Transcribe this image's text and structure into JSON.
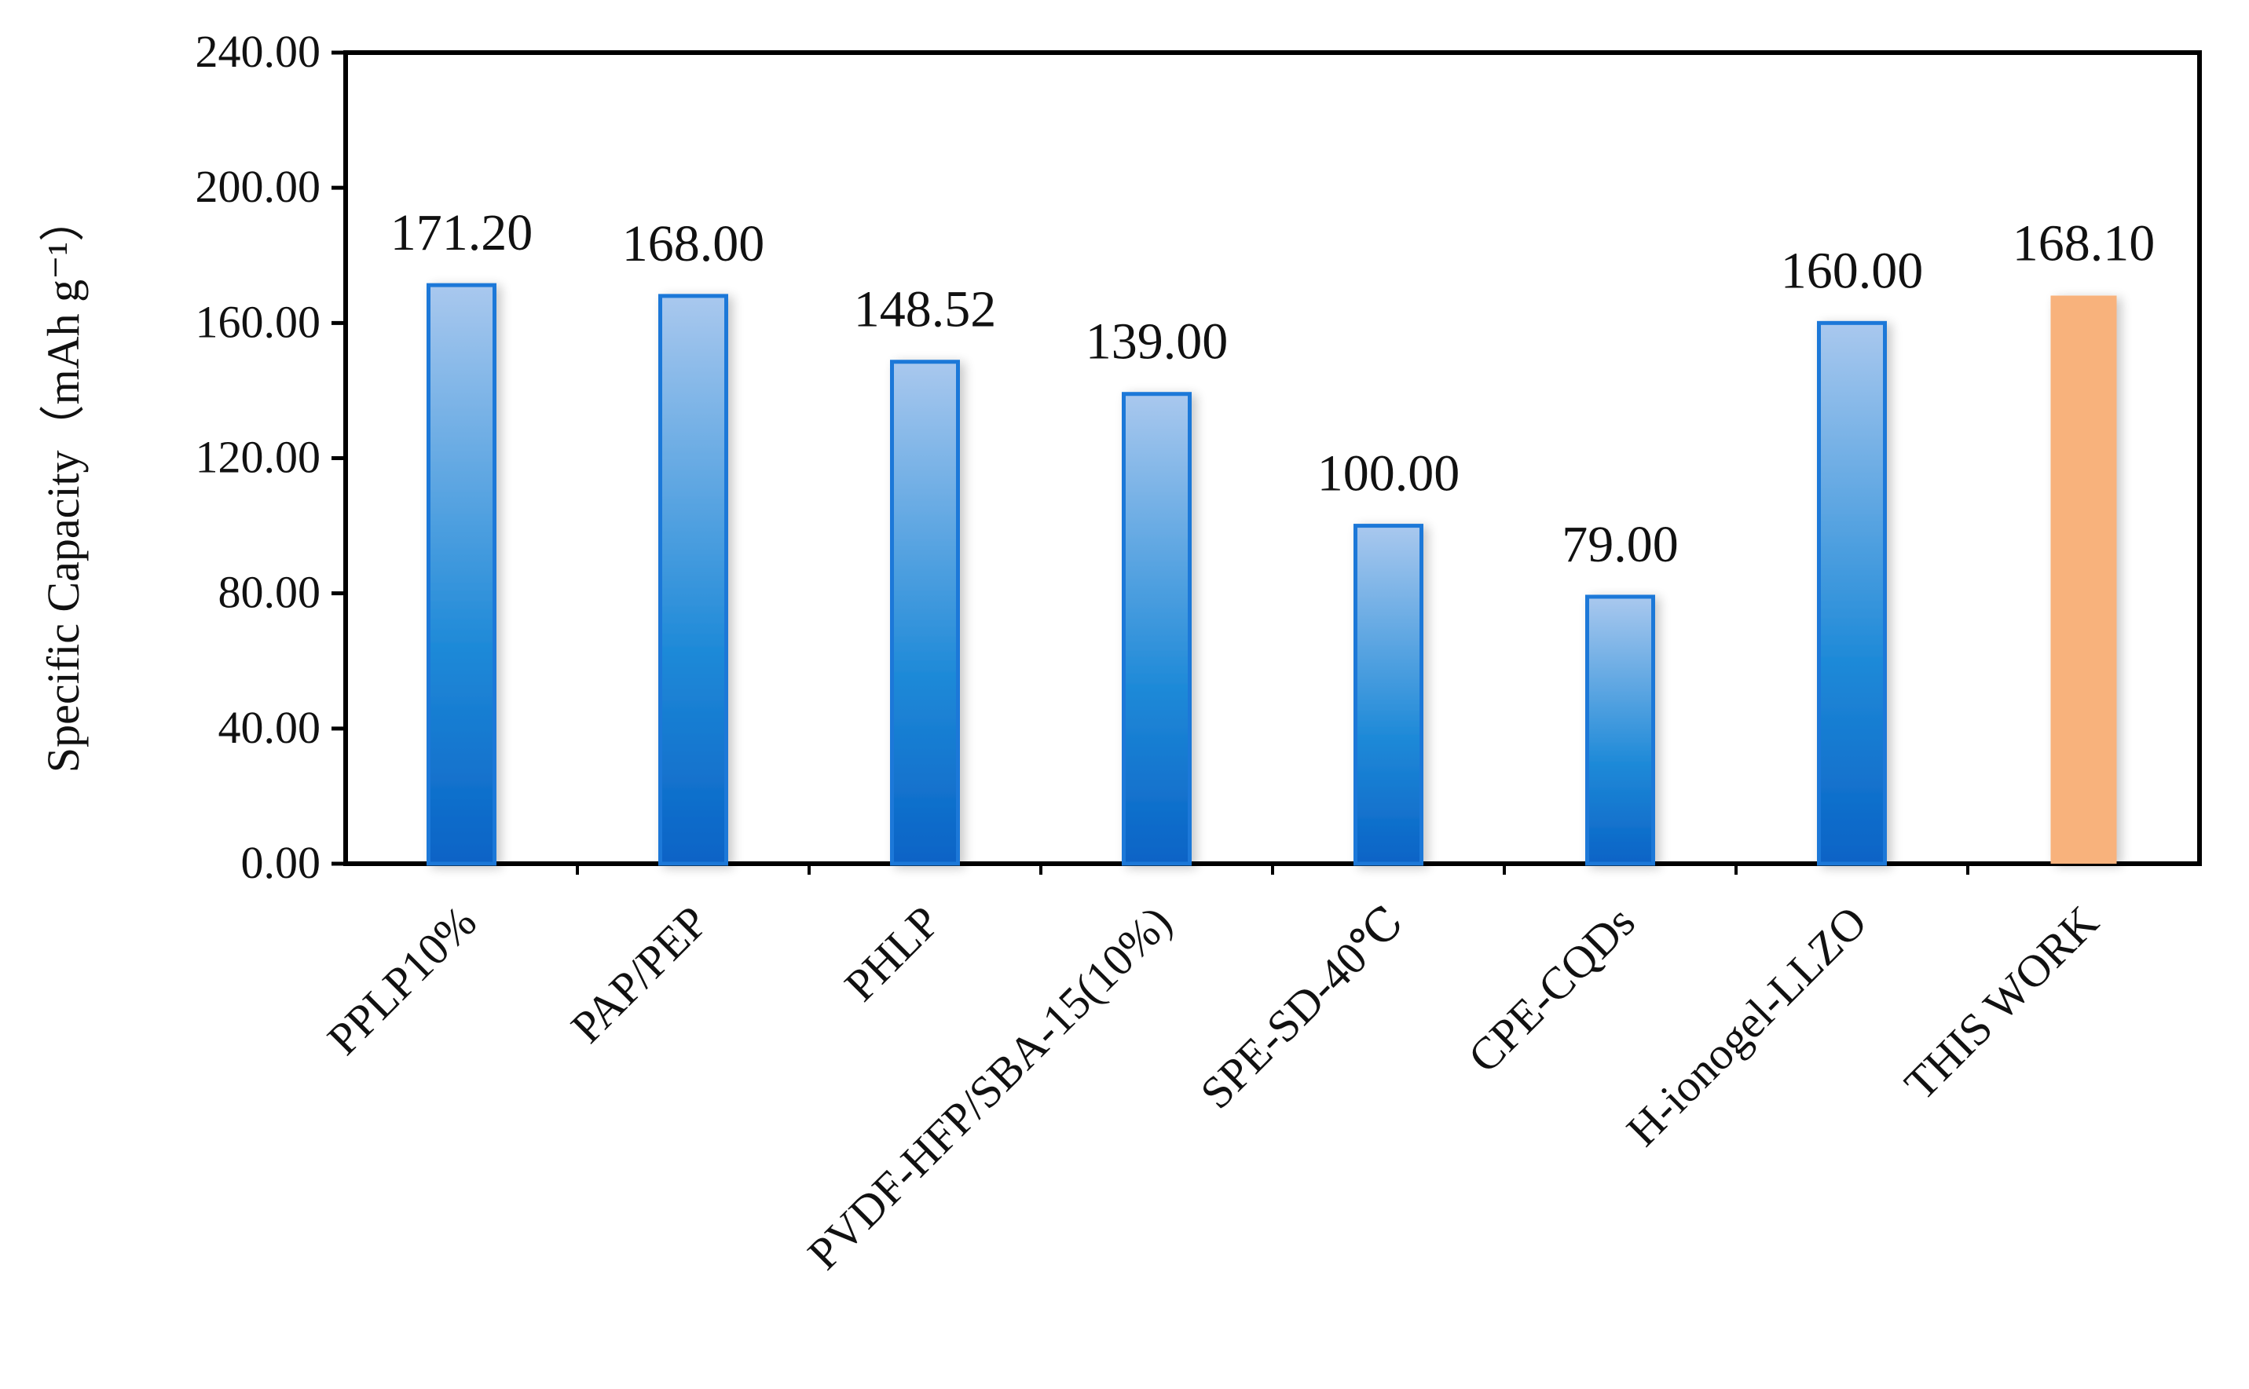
{
  "chart_data": {
    "type": "bar",
    "ylabel": "Specific Capacity（mAh g⁻¹）",
    "ylim": [
      0,
      240
    ],
    "y_ticks": [
      0,
      40,
      80,
      120,
      160,
      200,
      240
    ],
    "y_tick_labels": [
      "0.00",
      "40.00",
      "80.00",
      "120.00",
      "160.00",
      "200.00",
      "240.00"
    ],
    "categories": [
      "PPLP10%",
      "PAP/PEP",
      "PHLP",
      "PVDF-HFP/SBA-15(10%)",
      "SPE-SD-40℃",
      "CPE-CQDs",
      "H-ionogel-LLZO",
      "THIS WORK"
    ],
    "values": [
      171.2,
      168.0,
      148.52,
      139.0,
      100.0,
      79.0,
      160.0,
      168.1
    ],
    "data_labels": [
      "171.20",
      "168.00",
      "148.52",
      "139.00",
      "100.00",
      "79.00",
      "160.00",
      "168.10"
    ],
    "grid": false,
    "legend": "none",
    "colors": {
      "bar_gradient_top": "#a9c8ee",
      "bar_gradient_mid": "#1f8ad8",
      "bar_gradient_bottom": "#0a63c6",
      "bar_border": "#1a78d8",
      "highlight_bar": "#f8b27c",
      "axis": "#000000"
    },
    "highlight_index": 7
  }
}
